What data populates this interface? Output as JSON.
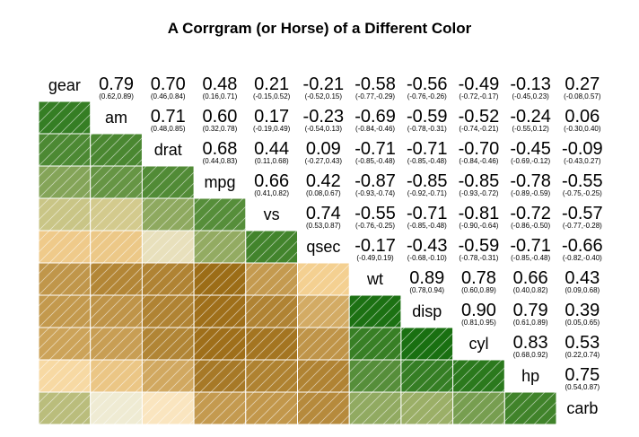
{
  "chart_data": {
    "type": "heatmap",
    "title": "A Corrgram (or Horse) of a Different Color",
    "variables": [
      "gear",
      "am",
      "drat",
      "mpg",
      "vs",
      "qsec",
      "wt",
      "disp",
      "cyl",
      "hp",
      "carb"
    ],
    "lower_panel": "shade",
    "upper_panel": "conf",
    "colors": {
      "negative": "#8c5a00",
      "neutral": "#ffffff",
      "positive": "#006400",
      "cell_border": "#ffffff",
      "hatch": "#ffffff"
    },
    "correlation": [
      [
        1.0,
        0.79,
        0.7,
        0.48,
        0.21,
        -0.21,
        -0.58,
        -0.56,
        -0.49,
        -0.13,
        0.27
      ],
      [
        0.79,
        1.0,
        0.71,
        0.6,
        0.17,
        -0.23,
        -0.69,
        -0.59,
        -0.52,
        -0.24,
        0.06
      ],
      [
        0.7,
        0.71,
        1.0,
        0.68,
        0.44,
        0.09,
        -0.71,
        -0.71,
        -0.7,
        -0.45,
        -0.09
      ],
      [
        0.48,
        0.6,
        0.68,
        1.0,
        0.66,
        0.42,
        -0.87,
        -0.85,
        -0.85,
        -0.78,
        -0.55
      ],
      [
        0.21,
        0.17,
        0.44,
        0.66,
        1.0,
        0.74,
        -0.55,
        -0.71,
        -0.81,
        -0.72,
        -0.57
      ],
      [
        -0.21,
        -0.23,
        0.09,
        0.42,
        0.74,
        1.0,
        -0.17,
        -0.43,
        -0.59,
        -0.71,
        -0.66
      ],
      [
        -0.58,
        -0.69,
        -0.71,
        -0.87,
        -0.55,
        -0.17,
        1.0,
        0.89,
        0.78,
        0.66,
        0.43
      ],
      [
        -0.56,
        -0.59,
        -0.71,
        -0.85,
        -0.71,
        -0.43,
        0.89,
        1.0,
        0.9,
        0.79,
        0.39
      ],
      [
        -0.49,
        -0.52,
        -0.7,
        -0.85,
        -0.81,
        -0.59,
        0.78,
        0.9,
        1.0,
        0.83,
        0.53
      ],
      [
        -0.13,
        -0.24,
        -0.45,
        -0.78,
        -0.72,
        -0.71,
        0.66,
        0.79,
        0.83,
        1.0,
        0.75
      ],
      [
        0.27,
        0.06,
        -0.09,
        -0.55,
        -0.57,
        -0.66,
        0.43,
        0.39,
        0.53,
        0.75,
        1.0
      ]
    ],
    "coef_labels": [
      [
        "",
        "0.79",
        "0.70",
        "0.48",
        "0.21",
        "-0.21",
        "-0.58",
        "-0.56",
        "-0.49",
        "-0.13",
        "0.27"
      ],
      [
        "",
        "",
        "0.71",
        "0.60",
        "0.17",
        "-0.23",
        "-0.69",
        "-0.59",
        "-0.52",
        "-0.24",
        "0.06"
      ],
      [
        "",
        "",
        "",
        "0.68",
        "0.44",
        "0.09",
        "-0.71",
        "-0.71",
        "-0.70",
        "-0.45",
        "-0.09"
      ],
      [
        "",
        "",
        "",
        "",
        "0.66",
        "0.42",
        "-0.87",
        "-0.85",
        "-0.85",
        "-0.78",
        "-0.55"
      ],
      [
        "",
        "",
        "",
        "",
        "",
        "0.74",
        "-0.55",
        "-0.71",
        "-0.81",
        "-0.72",
        "-0.57"
      ],
      [
        "",
        "",
        "",
        "",
        "",
        "",
        "-0.17",
        "-0.43",
        "-0.59",
        "-0.71",
        "-0.66"
      ],
      [
        "",
        "",
        "",
        "",
        "",
        "",
        "",
        "0.89",
        "0.78",
        "0.66",
        "0.43"
      ],
      [
        "",
        "",
        "",
        "",
        "",
        "",
        "",
        "",
        "0.90",
        "0.79",
        "0.39"
      ],
      [
        "",
        "",
        "",
        "",
        "",
        "",
        "",
        "",
        "",
        "0.83",
        "0.53"
      ],
      [
        "",
        "",
        "",
        "",
        "",
        "",
        "",
        "",
        "",
        "",
        "0.75"
      ],
      [
        "",
        "",
        "",
        "",
        "",
        "",
        "",
        "",
        "",
        "",
        ""
      ]
    ],
    "ci_labels": [
      [
        "",
        "(0.62,0.89)",
        "(0.46,0.84)",
        "(0.16,0.71)",
        "(-0.15,0.52)",
        "(-0.52,0.15)",
        "(-0.77,-0.29)",
        "(-0.76,-0.26)",
        "(-0.72,-0.17)",
        "(-0.45,0.23)",
        "(-0.08,0.57)"
      ],
      [
        "",
        "",
        "(0.48,0.85)",
        "(0.32,0.78)",
        "(-0.19,0.49)",
        "(-0.54,0.13)",
        "(-0.84,-0.46)",
        "(-0.78,-0.31)",
        "(-0.74,-0.21)",
        "(-0.55,0.12)",
        "(-0.30,0.40)"
      ],
      [
        "",
        "",
        "",
        "(0.44,0.83)",
        "(0.11,0.68)",
        "(-0.27,0.43)",
        "(-0.85,-0.48)",
        "(-0.85,-0.48)",
        "(-0.84,-0.46)",
        "(-0.69,-0.12)",
        "(-0.43,0.27)"
      ],
      [
        "",
        "",
        "",
        "",
        "(0.41,0.82)",
        "(0.08,0.67)",
        "(-0.93,-0.74)",
        "(-0.92,-0.71)",
        "(-0.93,-0.72)",
        "(-0.89,-0.59)",
        "(-0.75,-0.25)"
      ],
      [
        "",
        "",
        "",
        "",
        "",
        "(0.53,0.87)",
        "(-0.76,-0.25)",
        "(-0.85,-0.48)",
        "(-0.90,-0.64)",
        "(-0.86,-0.50)",
        "(-0.77,-0.28)"
      ],
      [
        "",
        "",
        "",
        "",
        "",
        "",
        "(-0.49,0.19)",
        "(-0.68,-0.10)",
        "(-0.78,-0.31)",
        "(-0.85,-0.48)",
        "(-0.82,-0.40)"
      ],
      [
        "",
        "",
        "",
        "",
        "",
        "",
        "",
        "(0.78,0.94)",
        "(0.60,0.89)",
        "(0.40,0.82)",
        "(0.09,0.68)"
      ],
      [
        "",
        "",
        "",
        "",
        "",
        "",
        "",
        "",
        "(0.81,0.95)",
        "(0.61,0.89)",
        "(0.05,0.65)"
      ],
      [
        "",
        "",
        "",
        "",
        "",
        "",
        "",
        "",
        "",
        "(0.68,0.92)",
        "(0.22,0.74)"
      ],
      [
        "",
        "",
        "",
        "",
        "",
        "",
        "",
        "",
        "",
        "",
        "(0.54,0.87)"
      ],
      [
        "",
        "",
        "",
        "",
        "",
        "",
        "",
        "",
        "",
        "",
        ""
      ]
    ]
  }
}
